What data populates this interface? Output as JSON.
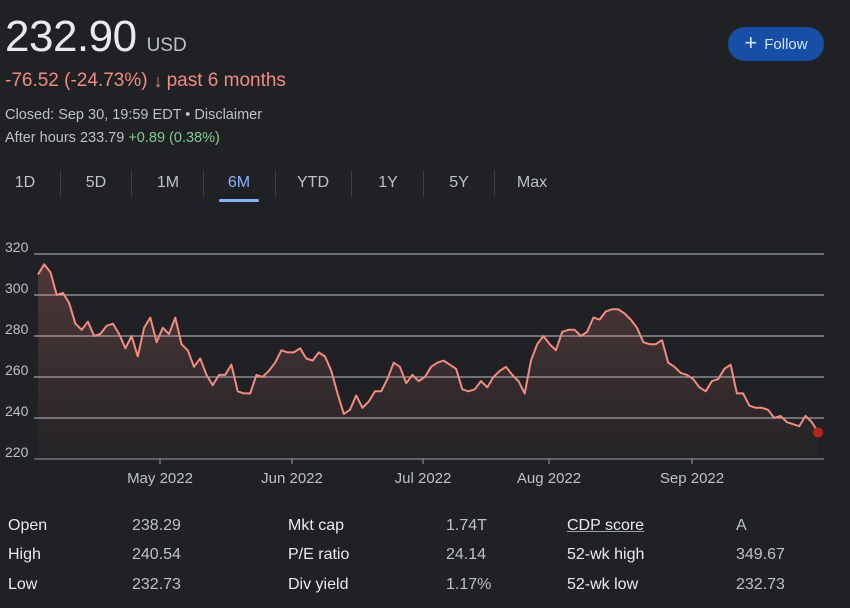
{
  "header": {
    "price": "232.90",
    "currency": "USD",
    "change": "-76.52 (-24.73%)",
    "change_arrow": "↓",
    "change_period": "past 6 months",
    "closed": "Closed: Sep 30, 19:59 EDT • Disclaimer",
    "after_hours_label": "After hours 233.79",
    "after_hours_change": "+0.89 (0.38%)"
  },
  "follow_button": {
    "icon": "plus-icon",
    "plus": "+",
    "label": "Follow"
  },
  "tabs": [
    "1D",
    "5D",
    "1M",
    "6M",
    "YTD",
    "1Y",
    "5Y",
    "Max"
  ],
  "active_tab": "6M",
  "chart_data": {
    "type": "line",
    "x_labels": [
      "May 2022",
      "Jun 2022",
      "Jul 2022",
      "Aug 2022",
      "Sep 2022"
    ],
    "y_ticks": [
      220,
      240,
      260,
      280,
      300,
      320
    ],
    "ylim": [
      220,
      320
    ],
    "grid": true,
    "line_color": "#f28b82",
    "series": [
      {
        "values": [
          310,
          315,
          311,
          300,
          301,
          296,
          286,
          283,
          287,
          280,
          281,
          285,
          286,
          281,
          274,
          280,
          270,
          284,
          289,
          277,
          284,
          281,
          289,
          276,
          273,
          265,
          269,
          261,
          256,
          261,
          261,
          266,
          253,
          252,
          252,
          261,
          260,
          263,
          267,
          273,
          272,
          272,
          274,
          269,
          268,
          272,
          270,
          263,
          252,
          242,
          244,
          251,
          245,
          248,
          253,
          253,
          259,
          267,
          265,
          257,
          261,
          258,
          260,
          265,
          267,
          268,
          266,
          264,
          254,
          253,
          254,
          258,
          255,
          260,
          263,
          265,
          261,
          258,
          252,
          268,
          276,
          280,
          276,
          273,
          282,
          283,
          283,
          280,
          282,
          289,
          288,
          292,
          293,
          293,
          291,
          288,
          284,
          277,
          276,
          276,
          278,
          267,
          265,
          262,
          261,
          259,
          255,
          253,
          258,
          259,
          264,
          266,
          252,
          252,
          246,
          245,
          245,
          244,
          240,
          241,
          238,
          237,
          236,
          241,
          238,
          233
        ]
      }
    ],
    "last_point": 232.9
  },
  "stats": [
    [
      {
        "label": "Open",
        "value": "238.29"
      },
      {
        "label": "High",
        "value": "240.54"
      },
      {
        "label": "Low",
        "value": "232.73"
      }
    ],
    [
      {
        "label": "Mkt cap",
        "value": "1.74T"
      },
      {
        "label": "P/E ratio",
        "value": "24.14"
      },
      {
        "label": "Div yield",
        "value": "1.17%"
      }
    ],
    [
      {
        "label": "CDP score",
        "value": "A"
      },
      {
        "label": "52-wk high",
        "value": "349.67"
      },
      {
        "label": "52-wk low",
        "value": "232.73"
      }
    ]
  ]
}
